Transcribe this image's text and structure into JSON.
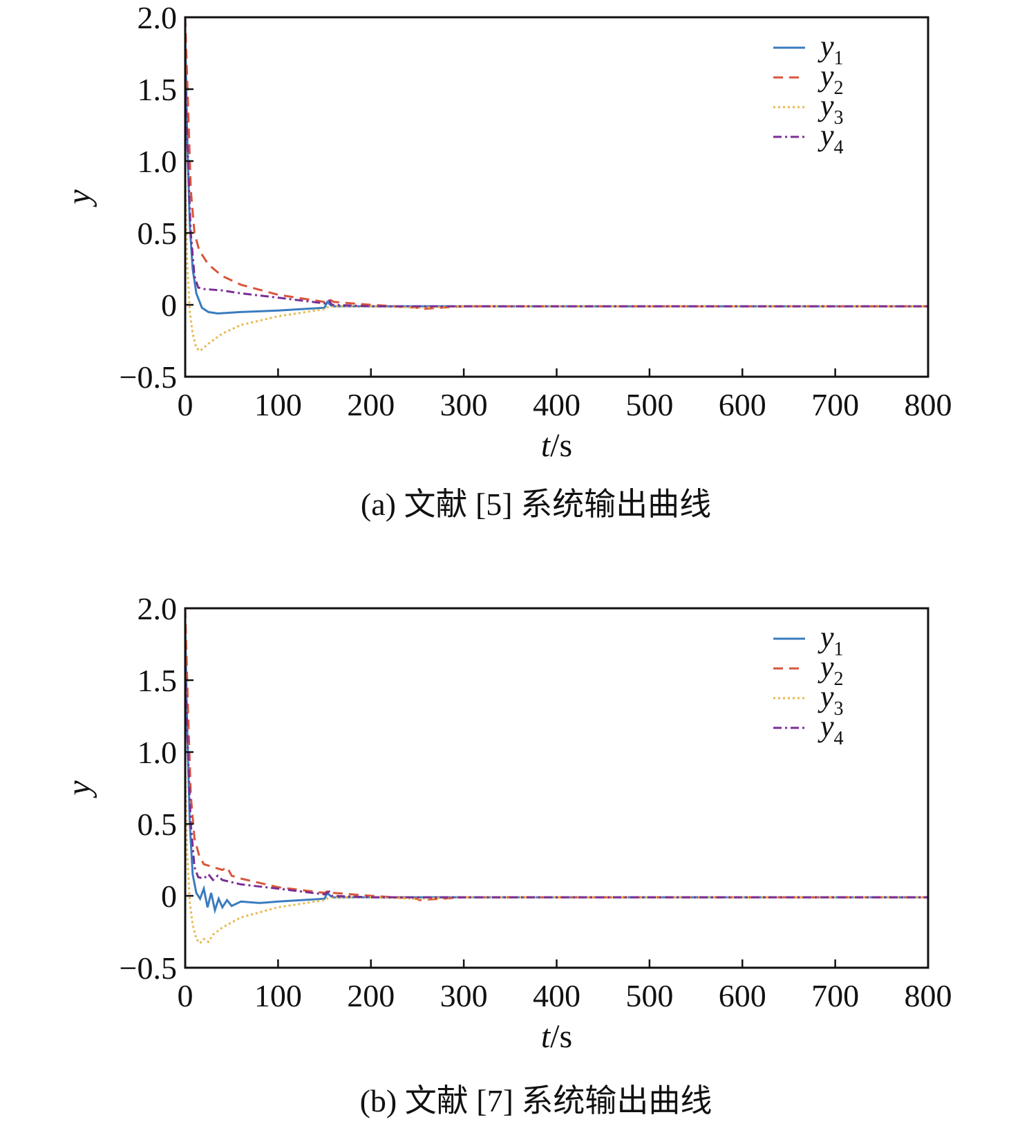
{
  "chart_data": [
    {
      "type": "line",
      "caption": "(a) 文献 [5] 系统输出曲线",
      "xlabel": "t/s",
      "ylabel": "y",
      "xlim": [
        0,
        800
      ],
      "ylim": [
        -0.5,
        2.0
      ],
      "xticks": [
        "0",
        "100",
        "200",
        "300",
        "400",
        "500",
        "600",
        "700",
        "800"
      ],
      "yticks": [
        "−0.5",
        "0",
        "0.5",
        "1.0",
        "1.5",
        "2.0"
      ],
      "legend_position": "top-right",
      "grid": false,
      "series": [
        {
          "name": "y1",
          "color": "#3a7bbf",
          "dash": "solid",
          "points": [
            [
              0,
              1.9
            ],
            [
              2,
              1.2
            ],
            [
              5,
              0.55
            ],
            [
              8,
              0.25
            ],
            [
              12,
              0.08
            ],
            [
              18,
              -0.02
            ],
            [
              25,
              -0.05
            ],
            [
              35,
              -0.06
            ],
            [
              60,
              -0.05
            ],
            [
              100,
              -0.04
            ],
            [
              150,
              -0.02
            ],
            [
              153,
              0.02
            ],
            [
              158,
              -0.01
            ],
            [
              200,
              -0.01
            ],
            [
              300,
              -0.01
            ],
            [
              800,
              -0.01
            ]
          ]
        },
        {
          "name": "y2",
          "color": "#d9553a",
          "dash": "dashed",
          "points": [
            [
              0,
              2.0
            ],
            [
              3,
              1.4
            ],
            [
              6,
              0.8
            ],
            [
              10,
              0.5
            ],
            [
              15,
              0.38
            ],
            [
              25,
              0.28
            ],
            [
              40,
              0.2
            ],
            [
              60,
              0.14
            ],
            [
              100,
              0.07
            ],
            [
              150,
              0.02
            ],
            [
              155,
              0.04
            ],
            [
              160,
              0.02
            ],
            [
              200,
              0.0
            ],
            [
              250,
              -0.02
            ],
            [
              252,
              -0.03
            ],
            [
              300,
              -0.01
            ],
            [
              800,
              -0.01
            ]
          ]
        },
        {
          "name": "y3",
          "color": "#e8b84a",
          "dash": "dotted",
          "points": [
            [
              0,
              0.9
            ],
            [
              2,
              0.3
            ],
            [
              5,
              -0.05
            ],
            [
              8,
              -0.2
            ],
            [
              12,
              -0.3
            ],
            [
              16,
              -0.32
            ],
            [
              25,
              -0.27
            ],
            [
              40,
              -0.2
            ],
            [
              60,
              -0.14
            ],
            [
              100,
              -0.08
            ],
            [
              150,
              -0.03
            ],
            [
              155,
              -0.01
            ],
            [
              200,
              -0.01
            ],
            [
              250,
              -0.02
            ],
            [
              300,
              -0.01
            ],
            [
              800,
              -0.01
            ]
          ]
        },
        {
          "name": "y4",
          "color": "#7a2e96",
          "dash": "dashdot",
          "points": [
            [
              0,
              1.6
            ],
            [
              3,
              1.0
            ],
            [
              6,
              0.5
            ],
            [
              10,
              0.2
            ],
            [
              14,
              0.12
            ],
            [
              20,
              0.11
            ],
            [
              40,
              0.1
            ],
            [
              60,
              0.08
            ],
            [
              100,
              0.05
            ],
            [
              150,
              0.01
            ],
            [
              155,
              0.03
            ],
            [
              158,
              0.0
            ],
            [
              200,
              -0.01
            ],
            [
              300,
              -0.01
            ],
            [
              800,
              -0.01
            ]
          ]
        }
      ]
    },
    {
      "type": "line",
      "caption": "(b) 文献 [7] 系统输出曲线",
      "xlabel": "t/s",
      "ylabel": "y",
      "xlim": [
        0,
        800
      ],
      "ylim": [
        -0.5,
        2.0
      ],
      "xticks": [
        "0",
        "100",
        "200",
        "300",
        "400",
        "500",
        "600",
        "700",
        "800"
      ],
      "yticks": [
        "−0.5",
        "0",
        "0.5",
        "1.0",
        "1.5",
        "2.0"
      ],
      "legend_position": "top-right",
      "grid": false,
      "series": [
        {
          "name": "y1",
          "color": "#3a7bbf",
          "dash": "solid",
          "points": [
            [
              0,
              1.9
            ],
            [
              2,
              1.2
            ],
            [
              5,
              0.5
            ],
            [
              8,
              0.15
            ],
            [
              12,
              0.02
            ],
            [
              16,
              -0.02
            ],
            [
              20,
              0.05
            ],
            [
              24,
              -0.08
            ],
            [
              28,
              0.02
            ],
            [
              32,
              -0.1
            ],
            [
              36,
              -0.02
            ],
            [
              40,
              -0.08
            ],
            [
              45,
              -0.03
            ],
            [
              50,
              -0.07
            ],
            [
              60,
              -0.04
            ],
            [
              80,
              -0.05
            ],
            [
              100,
              -0.04
            ],
            [
              150,
              -0.02
            ],
            [
              153,
              0.02
            ],
            [
              158,
              -0.01
            ],
            [
              200,
              -0.01
            ],
            [
              300,
              -0.01
            ],
            [
              800,
              -0.01
            ]
          ]
        },
        {
          "name": "y2",
          "color": "#d9553a",
          "dash": "dashed",
          "points": [
            [
              0,
              2.0
            ],
            [
              3,
              1.3
            ],
            [
              6,
              0.7
            ],
            [
              10,
              0.4
            ],
            [
              15,
              0.28
            ],
            [
              20,
              0.22
            ],
            [
              30,
              0.2
            ],
            [
              40,
              0.18
            ],
            [
              45,
              0.2
            ],
            [
              50,
              0.14
            ],
            [
              60,
              0.12
            ],
            [
              100,
              0.06
            ],
            [
              150,
              0.02
            ],
            [
              155,
              0.04
            ],
            [
              160,
              0.02
            ],
            [
              200,
              0.0
            ],
            [
              250,
              -0.02
            ],
            [
              252,
              -0.03
            ],
            [
              300,
              -0.01
            ],
            [
              800,
              -0.01
            ]
          ]
        },
        {
          "name": "y3",
          "color": "#e8b84a",
          "dash": "dotted",
          "points": [
            [
              0,
              0.9
            ],
            [
              2,
              0.3
            ],
            [
              5,
              -0.05
            ],
            [
              8,
              -0.2
            ],
            [
              12,
              -0.3
            ],
            [
              16,
              -0.33
            ],
            [
              20,
              -0.3
            ],
            [
              25,
              -0.32
            ],
            [
              30,
              -0.27
            ],
            [
              40,
              -0.22
            ],
            [
              60,
              -0.15
            ],
            [
              100,
              -0.08
            ],
            [
              150,
              -0.03
            ],
            [
              155,
              -0.01
            ],
            [
              200,
              -0.01
            ],
            [
              250,
              -0.02
            ],
            [
              300,
              -0.01
            ],
            [
              800,
              -0.01
            ]
          ]
        },
        {
          "name": "y4",
          "color": "#7a2e96",
          "dash": "dashdot",
          "points": [
            [
              0,
              1.6
            ],
            [
              3,
              1.0
            ],
            [
              6,
              0.5
            ],
            [
              10,
              0.2
            ],
            [
              14,
              0.13
            ],
            [
              20,
              0.12
            ],
            [
              25,
              0.15
            ],
            [
              30,
              0.11
            ],
            [
              35,
              0.14
            ],
            [
              40,
              0.11
            ],
            [
              60,
              0.08
            ],
            [
              100,
              0.05
            ],
            [
              150,
              0.01
            ],
            [
              155,
              0.03
            ],
            [
              158,
              0.0
            ],
            [
              200,
              -0.01
            ],
            [
              300,
              -0.01
            ],
            [
              800,
              -0.01
            ]
          ]
        }
      ]
    }
  ]
}
